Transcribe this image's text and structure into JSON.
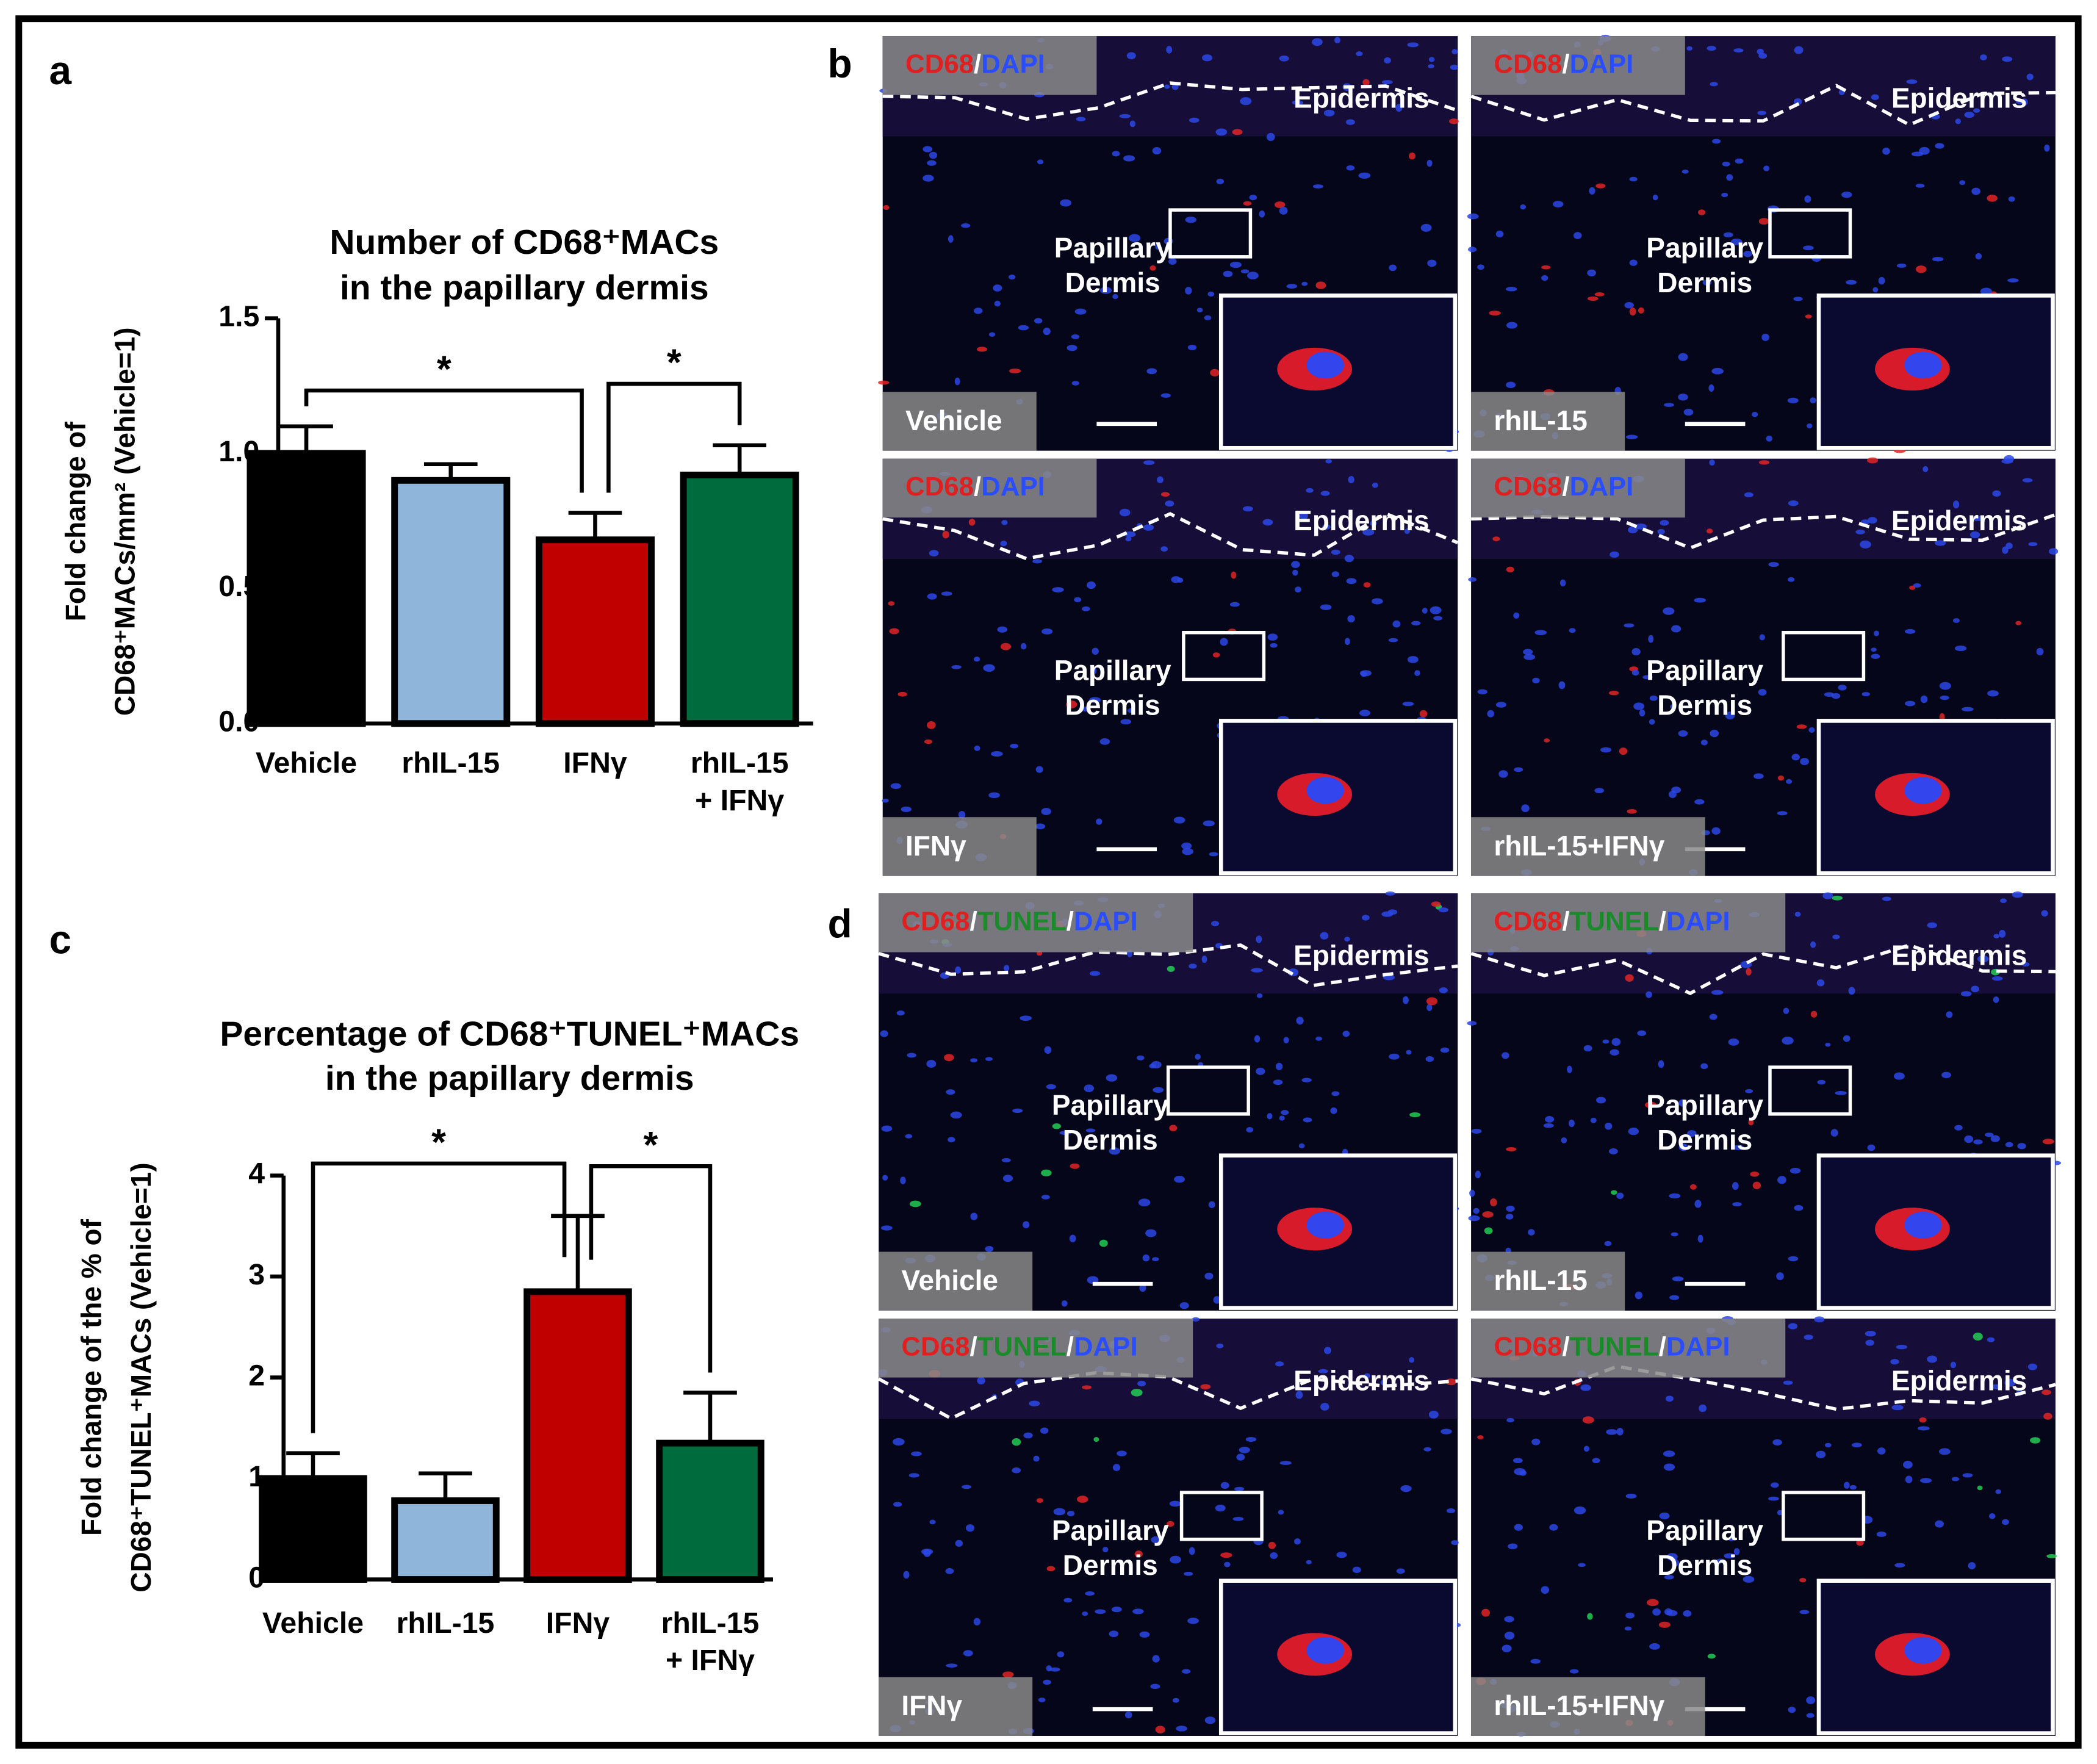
{
  "panel_labels": [
    "a",
    "b",
    "c",
    "d"
  ],
  "chart_data": [
    {
      "type": "bar",
      "title": [
        "Number of CD68⁺MACs",
        "in the papillary dermis"
      ],
      "ylabel": [
        "Fold change of",
        "CD68⁺MACs/mm² (Vehicle=1)"
      ],
      "categories": [
        [
          "Vehicle"
        ],
        [
          "rhIL-15"
        ],
        [
          "IFNγ"
        ],
        [
          "rhIL-15",
          "+ IFNγ"
        ]
      ],
      "values": [
        1.0,
        0.9,
        0.68,
        0.92
      ],
      "errors": [
        0.1,
        0.06,
        0.1,
        0.11
      ],
      "colors": [
        "#000000",
        "#8fb5da",
        "#c00000",
        "#006b3c"
      ],
      "ylim": [
        0,
        1.5
      ],
      "yticks": [
        {
          "value": 0,
          "label": "0.0"
        },
        0.5,
        {
          "value": 1,
          "label": "1.0"
        },
        1.5
      ],
      "significance": [
        {
          "from": 0,
          "to": 2,
          "label": "*"
        },
        {
          "from": 2,
          "to": 3,
          "label": "*"
        }
      ]
    },
    {
      "type": "bar",
      "title": [
        "Percentage of CD68⁺TUNEL⁺MACs",
        "in the papillary dermis"
      ],
      "ylabel": [
        "Fold change of the % of",
        "CD68⁺TUNEL⁺MACs (Vehicle=1)"
      ],
      "categories": [
        [
          "Vehicle"
        ],
        [
          "rhIL-15"
        ],
        [
          "IFNγ"
        ],
        [
          "rhIL-15",
          "+ IFNγ"
        ]
      ],
      "values": [
        1.0,
        0.78,
        2.85,
        1.35
      ],
      "errors": [
        0.25,
        0.27,
        0.75,
        0.5
      ],
      "colors": [
        "#000000",
        "#8fb5da",
        "#c00000",
        "#006b3c"
      ],
      "ylim": [
        0,
        4
      ],
      "yticks": [
        0,
        1,
        2,
        3,
        4
      ],
      "significance": [
        {
          "from": 0,
          "to": 2,
          "label": "*"
        },
        {
          "from": 2,
          "to": 3,
          "label": "*"
        }
      ]
    }
  ],
  "image_panels": [
    {
      "tiles": [
        {
          "stain": [
            {
              "text": "CD68",
              "color": "#e02020"
            },
            {
              "text": "/",
              "color": "#ffffff"
            },
            {
              "text": "DAPI",
              "color": "#2a4dff"
            }
          ],
          "condition": "Vehicle",
          "regions": [
            "Epidermis",
            "Papillary",
            "Dermis"
          ]
        },
        {
          "stain": [
            {
              "text": "CD68",
              "color": "#e02020"
            },
            {
              "text": "/",
              "color": "#ffffff"
            },
            {
              "text": "DAPI",
              "color": "#2a4dff"
            }
          ],
          "condition": "rhIL-15",
          "regions": [
            "Epidermis",
            "Papillary",
            "Dermis"
          ]
        },
        {
          "stain": [
            {
              "text": "CD68",
              "color": "#e02020"
            },
            {
              "text": "/",
              "color": "#ffffff"
            },
            {
              "text": "DAPI",
              "color": "#2a4dff"
            }
          ],
          "condition": "IFNγ",
          "regions": [
            "Epidermis",
            "Papillary",
            "Dermis"
          ]
        },
        {
          "stain": [
            {
              "text": "CD68",
              "color": "#e02020"
            },
            {
              "text": "/",
              "color": "#ffffff"
            },
            {
              "text": "DAPI",
              "color": "#2a4dff"
            }
          ],
          "condition": "rhIL-15+IFNγ",
          "regions": [
            "Epidermis",
            "Papillary",
            "Dermis"
          ]
        }
      ]
    },
    {
      "tiles": [
        {
          "stain": [
            {
              "text": "CD68",
              "color": "#e02020"
            },
            {
              "text": "/",
              "color": "#ffffff"
            },
            {
              "text": "TUNEL",
              "color": "#1a8a2a"
            },
            {
              "text": "/",
              "color": "#ffffff"
            },
            {
              "text": "DAPI",
              "color": "#2a4dff"
            }
          ],
          "condition": "Vehicle",
          "regions": [
            "Epidermis",
            "Papillary",
            "Dermis"
          ]
        },
        {
          "stain": [
            {
              "text": "CD68",
              "color": "#e02020"
            },
            {
              "text": "/",
              "color": "#ffffff"
            },
            {
              "text": "TUNEL",
              "color": "#1a8a2a"
            },
            {
              "text": "/",
              "color": "#ffffff"
            },
            {
              "text": "DAPI",
              "color": "#2a4dff"
            }
          ],
          "condition": "rhIL-15",
          "regions": [
            "Epidermis",
            "Papillary",
            "Dermis"
          ]
        },
        {
          "stain": [
            {
              "text": "CD68",
              "color": "#e02020"
            },
            {
              "text": "/",
              "color": "#ffffff"
            },
            {
              "text": "TUNEL",
              "color": "#1a8a2a"
            },
            {
              "text": "/",
              "color": "#ffffff"
            },
            {
              "text": "DAPI",
              "color": "#2a4dff"
            }
          ],
          "condition": "IFNγ",
          "regions": [
            "Epidermis",
            "Papillary",
            "Dermis"
          ]
        },
        {
          "stain": [
            {
              "text": "CD68",
              "color": "#e02020"
            },
            {
              "text": "/",
              "color": "#ffffff"
            },
            {
              "text": "TUNEL",
              "color": "#1a8a2a"
            },
            {
              "text": "/",
              "color": "#ffffff"
            },
            {
              "text": "DAPI",
              "color": "#2a4dff"
            }
          ],
          "condition": "rhIL-15+IFNγ",
          "regions": [
            "Epidermis",
            "Papillary",
            "Dermis"
          ]
        }
      ]
    }
  ]
}
